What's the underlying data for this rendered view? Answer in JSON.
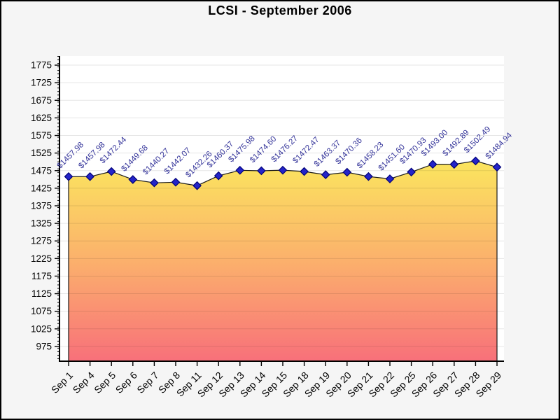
{
  "title": "LCSI - September 2006",
  "chart_data": {
    "type": "area",
    "title": "LCSI - September 2006",
    "categories": [
      "Sep 1",
      "Sep 4",
      "Sep 5",
      "Sep 6",
      "Sep 7",
      "Sep 8",
      "Sep 11",
      "Sep 12",
      "Sep 13",
      "Sep 14",
      "Sep 15",
      "Sep 18",
      "Sep 19",
      "Sep 20",
      "Sep 21",
      "Sep 22",
      "Sep 25",
      "Sep 26",
      "Sep 27",
      "Sep 28",
      "Sep 29"
    ],
    "values": [
      1457.98,
      1457.98,
      1472.44,
      1449.68,
      1440.27,
      1442.07,
      1432.26,
      1460.37,
      1475.98,
      1474.6,
      1476.27,
      1472.47,
      1463.37,
      1470.36,
      1458.23,
      1451.6,
      1470.93,
      1493.0,
      1492.89,
      1502.49,
      1484.94
    ],
    "point_labels": [
      "$1457.98",
      "$1457.98",
      "$1472.44",
      "$1449.68",
      "$1440.27",
      "$1442.07",
      "$1432.26",
      "$1460.37",
      "$1475.98",
      "$1474.60",
      "$1476.27",
      "$1472.47",
      "$1463.37",
      "$1470.36",
      "$1458.23",
      "$1451.60",
      "$1470.93",
      "$1493.00",
      "$1492.89",
      "$1502.49",
      "$1484.94"
    ],
    "xlabel": "",
    "ylabel": "",
    "ylim": [
      933,
      1801
    ],
    "yticks_major": {
      "min": 975,
      "max": 1775,
      "step": 50
    },
    "yticks_minor_step": 10,
    "grid": true,
    "legend": false,
    "marker": "diamond",
    "colors": {
      "background": "#f5f5f5",
      "plot_background": "#ffffff",
      "grid_overlay": "rgba(0,0,0,0.10)",
      "axis": "#000000",
      "line": "#1a1a1a",
      "marker_fill": "#2424c8",
      "marker_border": "#000078",
      "point_label": "#333399",
      "tick_label": "#000000",
      "area_gradient_top": "#fbe55e",
      "area_gradient_mid": "#fbb06c",
      "area_gradient_bottom": "#f8707a"
    }
  }
}
